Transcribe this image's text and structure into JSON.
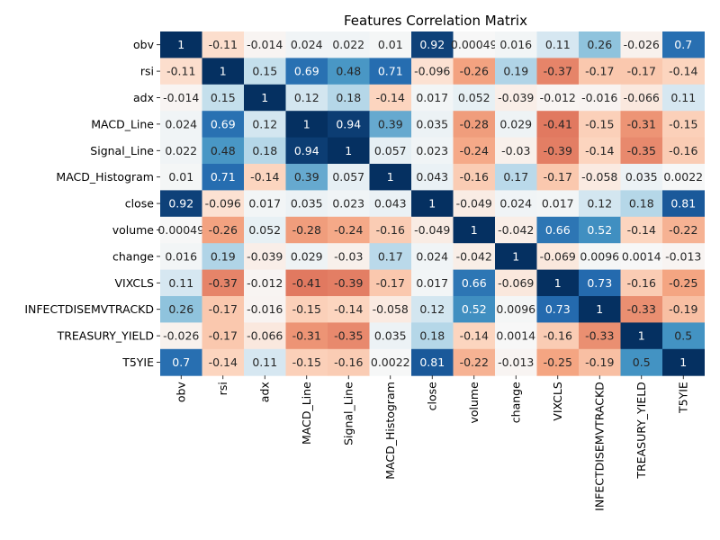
{
  "chart_data": {
    "type": "heatmap",
    "title": "Features Correlation Matrix",
    "labels": [
      "obv",
      "rsi",
      "adx",
      "MACD_Line",
      "Signal_Line",
      "MACD_Histogram",
      "close",
      "volume",
      "change",
      "VIXCLS",
      "INFECTDISEMVTRACKD",
      "TREASURY_YIELD",
      "T5YIE"
    ],
    "values": [
      [
        1,
        -0.11,
        -0.014,
        0.024,
        0.022,
        0.01,
        0.92,
        0.00049,
        0.016,
        0.11,
        0.26,
        -0.026,
        0.7
      ],
      [
        -0.11,
        1,
        0.15,
        0.69,
        0.48,
        0.71,
        -0.096,
        -0.26,
        0.19,
        -0.37,
        -0.17,
        -0.17,
        -0.14
      ],
      [
        -0.014,
        0.15,
        1,
        0.12,
        0.18,
        -0.14,
        0.017,
        0.052,
        -0.039,
        -0.012,
        -0.016,
        -0.066,
        0.11
      ],
      [
        0.024,
        0.69,
        0.12,
        1,
        0.94,
        0.39,
        0.035,
        -0.28,
        0.029,
        -0.41,
        -0.15,
        -0.31,
        -0.15
      ],
      [
        0.022,
        0.48,
        0.18,
        0.94,
        1,
        0.057,
        0.023,
        -0.24,
        -0.03,
        -0.39,
        -0.14,
        -0.35,
        -0.16
      ],
      [
        0.01,
        0.71,
        -0.14,
        0.39,
        0.057,
        1,
        0.043,
        -0.16,
        0.17,
        -0.17,
        -0.058,
        0.035,
        0.0022
      ],
      [
        0.92,
        -0.096,
        0.017,
        0.035,
        0.023,
        0.043,
        1,
        -0.049,
        0.024,
        0.017,
        0.12,
        0.18,
        0.81
      ],
      [
        0.00049,
        -0.26,
        0.052,
        -0.28,
        -0.24,
        -0.16,
        -0.049,
        1,
        -0.042,
        0.66,
        0.52,
        -0.14,
        -0.22
      ],
      [
        0.016,
        0.19,
        -0.039,
        0.029,
        -0.03,
        0.17,
        0.024,
        -0.042,
        1,
        -0.069,
        0.0096,
        0.0014,
        -0.013
      ],
      [
        0.11,
        -0.37,
        -0.012,
        -0.41,
        -0.39,
        -0.17,
        0.017,
        0.66,
        -0.069,
        1,
        0.73,
        -0.16,
        -0.25
      ],
      [
        0.26,
        -0.17,
        -0.016,
        -0.15,
        -0.14,
        -0.058,
        0.12,
        0.52,
        0.0096,
        0.73,
        1,
        -0.33,
        -0.19
      ],
      [
        -0.026,
        -0.17,
        -0.066,
        -0.31,
        -0.35,
        0.035,
        0.18,
        -0.14,
        0.0014,
        -0.16,
        -0.33,
        1,
        0.5
      ],
      [
        0.7,
        -0.14,
        0.11,
        -0.15,
        -0.16,
        0.0022,
        0.81,
        -0.22,
        -0.013,
        -0.25,
        -0.19,
        0.5,
        1
      ]
    ],
    "value_range": [
      -1,
      1
    ],
    "colormap": "RdBu",
    "colorbar": false,
    "annotations": true
  }
}
